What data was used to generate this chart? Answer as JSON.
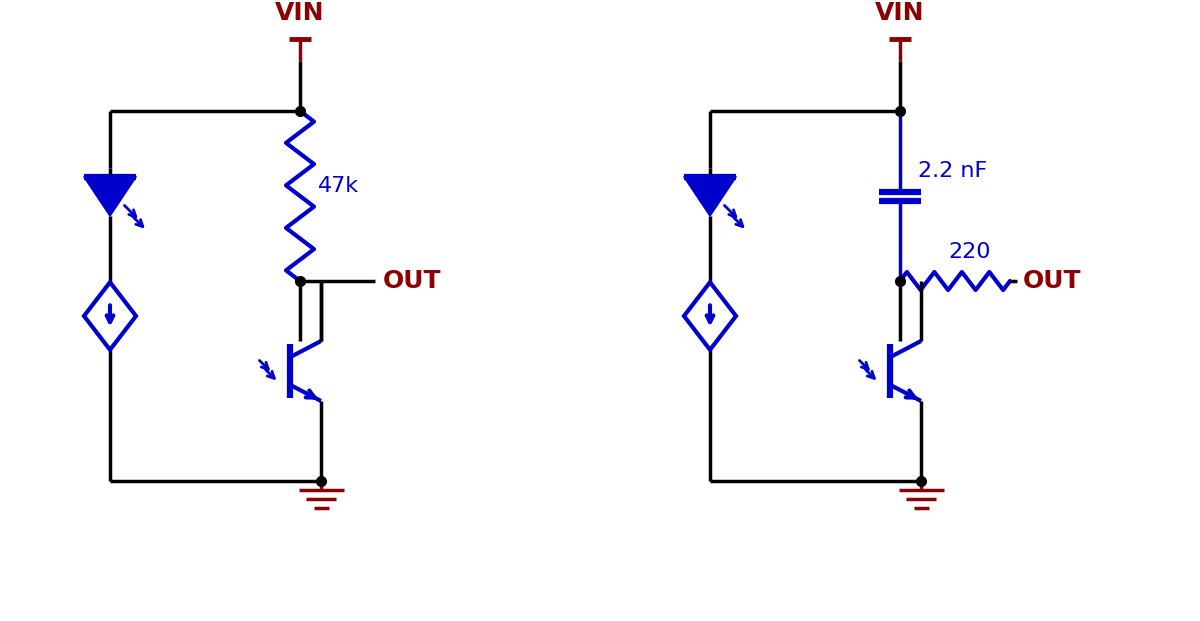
{
  "blue": "#0000CC",
  "dark_red": "#8B0000",
  "black": "#000000",
  "bg": "#FFFFFF",
  "lw": 3.0,
  "lw_thick": 4.5,
  "lw_wire": 2.5,
  "circuit1": {
    "vin_label": "VIN",
    "resistor_label": "47k",
    "out_label": "OUT"
  },
  "circuit2": {
    "vin_label": "VIN",
    "cap_label": "2.2 nF",
    "resistor_label": "220",
    "out_label": "OUT"
  }
}
